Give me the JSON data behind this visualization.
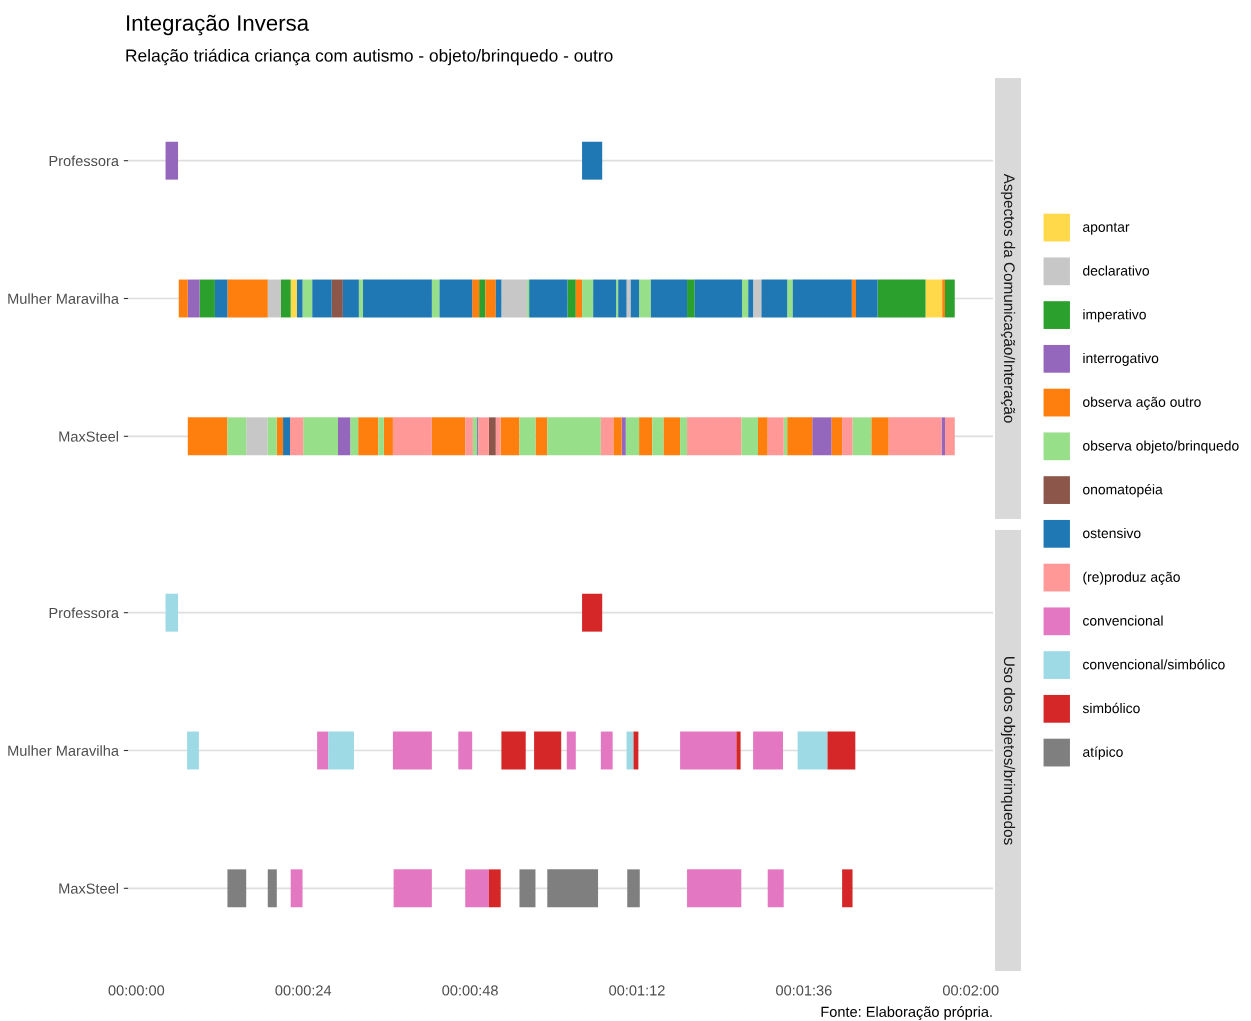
{
  "chart_data": [
    {
      "type": "bar",
      "orientation": "horizontal",
      "title": "Integração Inversa",
      "subtitle": "Relação triádica criança com autismo - objeto/brinquedo - outro",
      "y2label": "Aspectos da Comunicação/Interação",
      "categories": [
        "Professora",
        "Mulher Maravilha",
        "MaxSteel"
      ],
      "xlim": [
        -1.2,
        123.2
      ],
      "tick_labels": "y",
      "grid": "y",
      "legend": "right",
      "series": [
        {
          "name": "apontar",
          "color": "#ffd94a",
          "base": [
            null,
            22.2,
            null
          ],
          "values": [
            null,
            0.9,
            null
          ]
        },
        {
          "color": "#ffd94a",
          "base": [
            null,
            113.5,
            null
          ],
          "values": [
            null,
            2.4,
            null
          ]
        },
        {
          "name": "declarativo",
          "color": "#c7c7c7",
          "base": [
            null,
            18.9,
            15.8
          ],
          "values": [
            null,
            1.9,
            3.1
          ]
        },
        {
          "color": "#c7c7c7",
          "base": [
            null,
            52.5,
            null
          ],
          "values": [
            null,
            3.7,
            null
          ]
        },
        {
          "color": "#c7c7c7",
          "base": [
            null,
            70.5,
            null
          ],
          "values": [
            null,
            0.6,
            null
          ]
        },
        {
          "color": "#c7c7c7",
          "base": [
            null,
            88.7,
            null
          ],
          "values": [
            null,
            1.2,
            null
          ]
        },
        {
          "name": "imperativo",
          "color": "#2ca02c",
          "base": [
            null,
            9.1,
            null
          ],
          "values": [
            null,
            2.2,
            null
          ]
        },
        {
          "color": "#2ca02c",
          "base": [
            null,
            20.8,
            null
          ],
          "values": [
            null,
            1.4,
            null
          ]
        },
        {
          "color": "#2ca02c",
          "base": [
            null,
            49.3,
            null
          ],
          "values": [
            null,
            0.9,
            null
          ]
        },
        {
          "color": "#2ca02c",
          "base": [
            null,
            62.0,
            null
          ],
          "values": [
            null,
            1.2,
            null
          ]
        },
        {
          "color": "#2ca02c",
          "base": [
            null,
            79.2,
            null
          ],
          "values": [
            null,
            1.1,
            null
          ]
        },
        {
          "color": "#2ca02c",
          "base": [
            null,
            106.6,
            null
          ],
          "values": [
            null,
            6.9,
            null
          ]
        },
        {
          "color": "#2ca02c",
          "base": [
            null,
            116.3,
            null
          ],
          "values": [
            null,
            1.4,
            null
          ]
        },
        {
          "name": "interrogativo",
          "color": "#9467bd",
          "base": [
            4.2,
            7.4,
            29.0
          ],
          "values": [
            1.8,
            1.7,
            1.8
          ]
        },
        {
          "color": "#9467bd",
          "base": [
            null,
            null,
            49.0
          ],
          "values": [
            null,
            null,
            0.2
          ]
        },
        {
          "color": "#9467bd",
          "base": [
            null,
            null,
            69.8
          ],
          "values": [
            null,
            null,
            0.6
          ]
        },
        {
          "color": "#9467bd",
          "base": [
            null,
            null,
            97.2
          ],
          "values": [
            null,
            null,
            2.8
          ]
        },
        {
          "color": "#9467bd",
          "base": [
            null,
            null,
            115.8
          ],
          "values": [
            null,
            null,
            0.5
          ]
        },
        {
          "name": "observa ação outro",
          "color": "#ff7f0e",
          "base": [
            null,
            6.1,
            7.4
          ],
          "values": [
            null,
            1.3,
            5.7
          ]
        },
        {
          "color": "#ff7f0e",
          "base": [
            null,
            13.1,
            20.2
          ],
          "values": [
            null,
            5.8,
            0.9
          ]
        },
        {
          "color": "#ff7f0e",
          "base": [
            null,
            48.3,
            31.9
          ],
          "values": [
            null,
            1.0,
            2.9
          ]
        },
        {
          "color": "#ff7f0e",
          "base": [
            null,
            50.2,
            35.6
          ],
          "values": [
            null,
            1.5,
            1.3
          ]
        },
        {
          "color": "#ff7f0e",
          "base": [
            null,
            63.2,
            42.5
          ],
          "values": [
            null,
            0.9,
            4.8
          ]
        },
        {
          "color": "#ff7f0e",
          "base": [
            null,
            102.9,
            52.4
          ],
          "values": [
            null,
            0.6,
            2.7
          ]
        },
        {
          "color": "#ff7f0e",
          "base": [
            null,
            115.9,
            57.4
          ],
          "values": [
            null,
            0.4,
            1.7
          ]
        },
        {
          "color": "#ff7f0e",
          "base": [
            null,
            null,
            68.6
          ],
          "values": [
            null,
            null,
            1.2
          ]
        },
        {
          "color": "#ff7f0e",
          "base": [
            null,
            null,
            72.3
          ],
          "values": [
            null,
            null,
            1.9
          ]
        },
        {
          "color": "#ff7f0e",
          "base": [
            null,
            null,
            75.8
          ],
          "values": [
            null,
            null,
            2.4
          ]
        },
        {
          "color": "#ff7f0e",
          "base": [
            null,
            null,
            89.4
          ],
          "values": [
            null,
            null,
            1.4
          ]
        },
        {
          "color": "#ff7f0e",
          "base": [
            null,
            null,
            93.6
          ],
          "values": [
            null,
            null,
            3.6
          ]
        },
        {
          "color": "#ff7f0e",
          "base": [
            null,
            null,
            100.0
          ],
          "values": [
            null,
            null,
            1.5
          ]
        },
        {
          "color": "#ff7f0e",
          "base": [
            null,
            null,
            105.7
          ],
          "values": [
            null,
            null,
            2.5
          ]
        },
        {
          "name": "observa objeto/brinquedo",
          "color": "#98df8a",
          "base": [
            null,
            23.9,
            13.1
          ],
          "values": [
            null,
            1.4,
            2.7
          ]
        },
        {
          "color": "#98df8a",
          "base": [
            null,
            32.0,
            18.9
          ],
          "values": [
            null,
            0.6,
            1.3
          ]
        },
        {
          "color": "#98df8a",
          "base": [
            null,
            42.5,
            24.0
          ],
          "values": [
            null,
            1.1,
            5.0
          ]
        },
        {
          "color": "#98df8a",
          "base": [
            null,
            56.2,
            30.8
          ],
          "values": [
            null,
            0.3,
            1.1
          ]
        },
        {
          "color": "#98df8a",
          "base": [
            null,
            64.1,
            34.8
          ],
          "values": [
            null,
            1.6,
            0.8
          ]
        },
        {
          "color": "#98df8a",
          "base": [
            null,
            69.0,
            48.4
          ],
          "values": [
            null,
            0.3,
            0.6
          ]
        },
        {
          "color": "#98df8a",
          "base": [
            null,
            72.3,
            55.1
          ],
          "values": [
            null,
            1.7,
            2.3
          ]
        },
        {
          "color": "#98df8a",
          "base": [
            null,
            87.1,
            59.1
          ],
          "values": [
            null,
            0.9,
            7.7
          ]
        },
        {
          "color": "#98df8a",
          "base": [
            null,
            93.6,
            70.4
          ],
          "values": [
            null,
            0.8,
            1.9
          ]
        },
        {
          "color": "#98df8a",
          "base": [
            null,
            null,
            74.2
          ],
          "values": [
            null,
            null,
            1.6
          ]
        },
        {
          "color": "#98df8a",
          "base": [
            null,
            null,
            78.2
          ],
          "values": [
            null,
            null,
            1.0
          ]
        },
        {
          "color": "#98df8a",
          "base": [
            null,
            null,
            87.0
          ],
          "values": [
            null,
            null,
            2.4
          ]
        },
        {
          "color": "#98df8a",
          "base": [
            null,
            null,
            93.1
          ],
          "values": [
            null,
            null,
            0.5
          ]
        },
        {
          "color": "#98df8a",
          "base": [
            null,
            null,
            103.0
          ],
          "values": [
            null,
            null,
            2.7
          ]
        },
        {
          "name": "onomatopéia",
          "color": "#8c564b",
          "base": [
            null,
            28.1,
            50.7
          ],
          "values": [
            null,
            1.6,
            1.0
          ]
        },
        {
          "name": "ostensivo",
          "color": "#1f77b4",
          "base": [
            64.1,
            11.3,
            21.1
          ],
          "values": [
            2.9,
            1.8,
            1.0
          ]
        },
        {
          "color": "#1f77b4",
          "base": [
            null,
            23.1,
            null
          ],
          "values": [
            null,
            0.8,
            null
          ]
        },
        {
          "color": "#1f77b4",
          "base": [
            null,
            25.3,
            null
          ],
          "values": [
            null,
            2.8,
            null
          ]
        },
        {
          "color": "#1f77b4",
          "base": [
            null,
            29.7,
            null
          ],
          "values": [
            null,
            2.3,
            null
          ]
        },
        {
          "color": "#1f77b4",
          "base": [
            null,
            32.6,
            null
          ],
          "values": [
            null,
            9.9,
            null
          ]
        },
        {
          "color": "#1f77b4",
          "base": [
            null,
            43.6,
            null
          ],
          "values": [
            null,
            4.7,
            null
          ]
        },
        {
          "color": "#1f77b4",
          "base": [
            null,
            51.7,
            null
          ],
          "values": [
            null,
            0.8,
            null
          ]
        },
        {
          "color": "#1f77b4",
          "base": [
            null,
            56.5,
            null
          ],
          "values": [
            null,
            5.5,
            null
          ]
        },
        {
          "color": "#1f77b4",
          "base": [
            null,
            65.7,
            null
          ],
          "values": [
            null,
            3.3,
            null
          ]
        },
        {
          "color": "#1f77b4",
          "base": [
            null,
            69.3,
            null
          ],
          "values": [
            null,
            1.2,
            null
          ]
        },
        {
          "color": "#1f77b4",
          "base": [
            null,
            71.1,
            null
          ],
          "values": [
            null,
            1.2,
            null
          ]
        },
        {
          "color": "#1f77b4",
          "base": [
            null,
            74.0,
            null
          ],
          "values": [
            null,
            5.2,
            null
          ]
        },
        {
          "color": "#1f77b4",
          "base": [
            null,
            80.3,
            null
          ],
          "values": [
            null,
            6.8,
            null
          ]
        },
        {
          "color": "#1f77b4",
          "base": [
            null,
            88.0,
            null
          ],
          "values": [
            null,
            0.7,
            null
          ]
        },
        {
          "color": "#1f77b4",
          "base": [
            null,
            89.9,
            null
          ],
          "values": [
            null,
            3.7,
            null
          ]
        },
        {
          "color": "#1f77b4",
          "base": [
            null,
            94.4,
            null
          ],
          "values": [
            null,
            8.5,
            null
          ]
        },
        {
          "color": "#1f77b4",
          "base": [
            null,
            103.5,
            null
          ],
          "values": [
            null,
            3.1,
            null
          ]
        },
        {
          "name": "(re)produz ação",
          "color": "#ff9896",
          "base": [
            null,
            null,
            22.1
          ],
          "values": [
            null,
            null,
            1.9
          ]
        },
        {
          "color": "#ff9896",
          "base": [
            null,
            null,
            36.9
          ],
          "values": [
            null,
            null,
            5.6
          ]
        },
        {
          "color": "#ff9896",
          "base": [
            null,
            null,
            47.3
          ],
          "values": [
            null,
            null,
            1.1
          ]
        },
        {
          "color": "#ff9896",
          "base": [
            null,
            null,
            49.2
          ],
          "values": [
            null,
            null,
            1.5
          ]
        },
        {
          "color": "#ff9896",
          "base": [
            null,
            null,
            51.7
          ],
          "values": [
            null,
            null,
            0.7
          ]
        },
        {
          "color": "#ff9896",
          "base": [
            null,
            null,
            66.8
          ],
          "values": [
            null,
            null,
            1.8
          ]
        },
        {
          "color": "#ff9896",
          "base": [
            null,
            null,
            79.2
          ],
          "values": [
            null,
            null,
            7.8
          ]
        },
        {
          "color": "#ff9896",
          "base": [
            null,
            null,
            90.8
          ],
          "values": [
            null,
            null,
            2.3
          ]
        },
        {
          "color": "#ff9896",
          "base": [
            null,
            null,
            101.5
          ],
          "values": [
            null,
            null,
            1.5
          ]
        },
        {
          "color": "#ff9896",
          "base": [
            null,
            null,
            108.2
          ],
          "values": [
            null,
            null,
            7.6
          ]
        },
        {
          "color": "#ff9896",
          "base": [
            null,
            null,
            116.3
          ],
          "values": [
            null,
            null,
            1.4
          ]
        }
      ]
    },
    {
      "type": "bar",
      "orientation": "horizontal",
      "y2label": "Uso dos objetos/brinquedos",
      "annotations": [
        "Fonte: Elaboração própria."
      ],
      "categories": [
        "Professora",
        "Mulher Maravilha",
        "MaxSteel"
      ],
      "xlim": [
        -1.2,
        123.2
      ],
      "xticks": [
        {
          "value": 0,
          "label": "00:00:00"
        },
        {
          "value": 24,
          "label": "00:00:24"
        },
        {
          "value": 48,
          "label": "00:00:48"
        },
        {
          "value": 72,
          "label": "00:01:12"
        },
        {
          "value": 96,
          "label": "00:01:36"
        },
        {
          "value": 120,
          "label": "00:02:00"
        }
      ],
      "grid": "y",
      "legend": "right",
      "series": [
        {
          "name": "convencional",
          "color": "#e377c2",
          "base": [
            null,
            26.0,
            22.2
          ],
          "values": [
            null,
            1.6,
            1.7
          ]
        },
        {
          "color": "#e377c2",
          "base": [
            null,
            36.9,
            37.0
          ],
          "values": [
            null,
            5.6,
            5.5
          ]
        },
        {
          "color": "#e377c2",
          "base": [
            null,
            46.3,
            47.3
          ],
          "values": [
            null,
            2.0,
            3.4
          ]
        },
        {
          "color": "#e377c2",
          "base": [
            null,
            61.9,
            79.2
          ],
          "values": [
            null,
            1.3,
            7.8
          ]
        },
        {
          "color": "#e377c2",
          "base": [
            null,
            66.8,
            90.8
          ],
          "values": [
            null,
            1.7,
            2.3
          ]
        },
        {
          "color": "#e377c2",
          "base": [
            null,
            78.2,
            null
          ],
          "values": [
            null,
            8.1,
            null
          ]
        },
        {
          "color": "#e377c2",
          "base": [
            null,
            88.7,
            null
          ],
          "values": [
            null,
            4.3,
            null
          ]
        },
        {
          "name": "convencional/simbólico",
          "color": "#9edae5",
          "base": [
            4.2,
            7.3,
            null
          ],
          "values": [
            1.8,
            1.7,
            null
          ]
        },
        {
          "color": "#9edae5",
          "base": [
            null,
            27.6,
            null
          ],
          "values": [
            null,
            3.7,
            null
          ]
        },
        {
          "color": "#9edae5",
          "base": [
            null,
            70.5,
            null
          ],
          "values": [
            null,
            1.0,
            null
          ]
        },
        {
          "color": "#9edae5",
          "base": [
            null,
            95.1,
            null
          ],
          "values": [
            null,
            4.3,
            null
          ]
        },
        {
          "name": "simbólico",
          "color": "#d62728",
          "base": [
            64.1,
            52.5,
            50.7
          ],
          "values": [
            2.9,
            3.5,
            1.7
          ]
        },
        {
          "color": "#d62728",
          "base": [
            null,
            57.2,
            101.5
          ],
          "values": [
            null,
            3.9,
            1.5
          ]
        },
        {
          "color": "#d62728",
          "base": [
            null,
            71.5,
            null
          ],
          "values": [
            null,
            0.7,
            null
          ]
        },
        {
          "color": "#d62728",
          "base": [
            null,
            86.3,
            null
          ],
          "values": [
            null,
            0.6,
            null
          ]
        },
        {
          "color": "#d62728",
          "base": [
            null,
            99.4,
            null
          ],
          "values": [
            null,
            4.0,
            null
          ]
        },
        {
          "name": "atípico",
          "color": "#7f7f7f",
          "base": [
            null,
            null,
            13.1
          ],
          "values": [
            null,
            null,
            2.7
          ]
        },
        {
          "color": "#7f7f7f",
          "base": [
            null,
            null,
            18.9
          ],
          "values": [
            null,
            null,
            1.3
          ]
        },
        {
          "color": "#7f7f7f",
          "base": [
            null,
            null,
            55.1
          ],
          "values": [
            null,
            null,
            2.3
          ]
        },
        {
          "color": "#7f7f7f",
          "base": [
            null,
            null,
            59.1
          ],
          "values": [
            null,
            null,
            7.3
          ]
        },
        {
          "color": "#7f7f7f",
          "base": [
            null,
            null,
            70.6
          ],
          "values": [
            null,
            null,
            1.8
          ]
        }
      ]
    }
  ]
}
